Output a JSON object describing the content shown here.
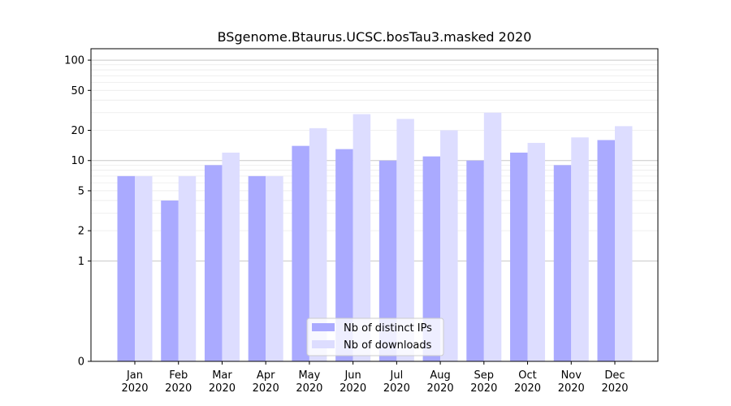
{
  "chart_data": {
    "type": "bar",
    "title": "BSgenome.Btaurus.UCSC.bosTau3.masked 2020",
    "xlabel": "",
    "ylabel": "",
    "yscale": "symlog",
    "ylim": [
      0,
      130
    ],
    "yticks": [
      0,
      1,
      2,
      5,
      10,
      20,
      50,
      100
    ],
    "categories": [
      {
        "month": "Jan",
        "year": "2020"
      },
      {
        "month": "Feb",
        "year": "2020"
      },
      {
        "month": "Mar",
        "year": "2020"
      },
      {
        "month": "Apr",
        "year": "2020"
      },
      {
        "month": "May",
        "year": "2020"
      },
      {
        "month": "Jun",
        "year": "2020"
      },
      {
        "month": "Jul",
        "year": "2020"
      },
      {
        "month": "Aug",
        "year": "2020"
      },
      {
        "month": "Sep",
        "year": "2020"
      },
      {
        "month": "Oct",
        "year": "2020"
      },
      {
        "month": "Nov",
        "year": "2020"
      },
      {
        "month": "Dec",
        "year": "2020"
      }
    ],
    "series": [
      {
        "name": "Nb of distinct IPs",
        "color": "#aaaaff",
        "values": [
          7,
          4,
          9,
          7,
          14,
          13,
          10,
          11,
          10,
          12,
          9,
          16
        ]
      },
      {
        "name": "Nb of downloads",
        "color": "#ddddff",
        "values": [
          7,
          7,
          12,
          7,
          21,
          29,
          26,
          20,
          30,
          15,
          17,
          22
        ]
      }
    ],
    "grid": true,
    "legend_position": "bottom-center"
  }
}
